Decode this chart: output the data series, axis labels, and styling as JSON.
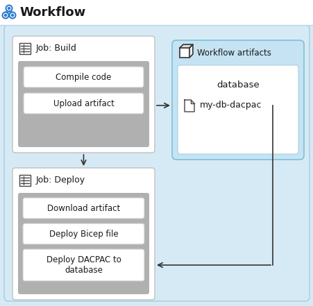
{
  "title": "Workflow",
  "bg_outer": "#d6eaf5",
  "bg_white": "#ffffff",
  "bg_gray": "#aaaaaa",
  "bg_artifact": "#c5e3f2",
  "border_light": "#b0cfe0",
  "border_box": "#c0c0c0",
  "border_dark": "#333333",
  "text_dark": "#1a1a1a",
  "icon_blue": "#2b7cd3",
  "job_build_title": "Job: Build",
  "job_deploy_title": "Job: Deploy",
  "artifacts_title": "Workflow artifacts",
  "artifact_folder": "database",
  "artifact_file": "my-db-dacpac",
  "build_steps": [
    "Compile code",
    "Upload artifact"
  ],
  "deploy_steps": [
    "Download artifact",
    "Deploy Bicep file",
    "Deploy DACPAC to\ndatabase"
  ],
  "figw": 4.52,
  "figh": 4.41,
  "dpi": 100
}
